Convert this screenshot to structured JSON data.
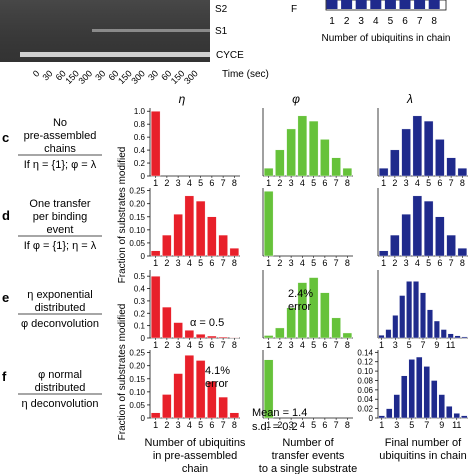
{
  "gel": {
    "labels": [
      "S2",
      "S1",
      "CYCE"
    ],
    "time_ticks": [
      "0",
      "30",
      "60",
      "150",
      "300",
      "30",
      "60",
      "150",
      "300",
      "30",
      "60",
      "150",
      "300"
    ],
    "time_label": "Time (sec)"
  },
  "top_chart": {
    "xlabel": "Number of ubiquitins in chain",
    "ticks": [
      "1",
      "2",
      "3",
      "4",
      "5",
      "6",
      "7",
      "8"
    ],
    "ylabel_fragment": "F"
  },
  "col_headers": [
    "η",
    "φ",
    "λ"
  ],
  "ylabel": "Fraction of substrates modified",
  "bottom_xlabels": [
    [
      "Number of ubiquitins",
      "in pre-assembled",
      "chain"
    ],
    [
      "Number of",
      "transfer events",
      "to a single substrate"
    ],
    [
      "Final number of",
      "ubiquitins in chain"
    ]
  ],
  "rows": [
    {
      "letter": "c",
      "desc_lines": [
        "No",
        "pre-assembled",
        "chains"
      ],
      "cond": "If η = {1}; φ = λ"
    },
    {
      "letter": "d",
      "desc_lines": [
        "One transfer",
        "per binding",
        "event"
      ],
      "cond": "If φ = {1}; η = λ"
    },
    {
      "letter": "e",
      "desc_lines": [
        "η exponential",
        "distributed"
      ],
      "cond": "φ deconvolution"
    },
    {
      "letter": "f",
      "desc_lines": [
        "φ normal",
        "distributed"
      ],
      "cond": "η deconvolution"
    }
  ],
  "annotations": {
    "alpha": "α = 0.5",
    "err_e": [
      "2.4%",
      "error"
    ],
    "err_f": [
      "4.1%",
      "error"
    ],
    "mean_sd": [
      "Mean = 1.4",
      "s.d. = 0.2"
    ]
  },
  "colors": {
    "red": "#e8202a",
    "green": "#66c23a",
    "blue": "#1f2a8c"
  },
  "chart_data": [
    {
      "panel": "c-eta",
      "type": "bar",
      "color": "red",
      "categories": [
        "1",
        "2",
        "3",
        "4",
        "5",
        "6",
        "7",
        "8"
      ],
      "values": [
        1.0,
        0,
        0,
        0,
        0,
        0,
        0,
        0
      ],
      "yticks": [
        "0",
        "0.2",
        "0.4",
        "0.6",
        "0.8",
        "1.0"
      ],
      "ylim": [
        0,
        1.05
      ]
    },
    {
      "panel": "c-phi",
      "type": "bar",
      "color": "green",
      "categories": [
        "1",
        "2",
        "3",
        "4",
        "5",
        "6",
        "7",
        "8"
      ],
      "values": [
        0.03,
        0.1,
        0.18,
        0.23,
        0.21,
        0.14,
        0.07,
        0.03
      ],
      "yticks": [],
      "ylim": [
        0,
        0.26
      ]
    },
    {
      "panel": "c-lambda",
      "type": "bar",
      "color": "blue",
      "categories": [
        "1",
        "2",
        "3",
        "4",
        "5",
        "6",
        "7",
        "8"
      ],
      "values": [
        0.03,
        0.1,
        0.18,
        0.23,
        0.21,
        0.14,
        0.07,
        0.03
      ],
      "yticks": [],
      "ylim": [
        0,
        0.26
      ]
    },
    {
      "panel": "d-eta",
      "type": "bar",
      "color": "red",
      "categories": [
        "1",
        "2",
        "3",
        "4",
        "5",
        "6",
        "7",
        "8"
      ],
      "values": [
        0.02,
        0.08,
        0.16,
        0.23,
        0.21,
        0.15,
        0.08,
        0.03
      ],
      "yticks": [
        "0",
        "0.05",
        "0.10",
        "0.15",
        "0.20",
        "0.25"
      ],
      "ylim": [
        0,
        0.26
      ]
    },
    {
      "panel": "d-phi",
      "type": "bar",
      "color": "green",
      "categories": [
        "1",
        "2",
        "3",
        "4",
        "5",
        "6",
        "7",
        "8"
      ],
      "values": [
        1.0,
        0,
        0,
        0,
        0,
        0,
        0,
        0
      ],
      "yticks": [],
      "ylim": [
        0,
        1.05
      ]
    },
    {
      "panel": "d-lambda",
      "type": "bar",
      "color": "blue",
      "categories": [
        "1",
        "2",
        "3",
        "4",
        "5",
        "6",
        "7",
        "8"
      ],
      "values": [
        0.02,
        0.08,
        0.16,
        0.23,
        0.21,
        0.15,
        0.08,
        0.03
      ],
      "yticks": [],
      "ylim": [
        0,
        0.26
      ]
    },
    {
      "panel": "e-eta",
      "type": "bar",
      "color": "red",
      "categories": [
        "1",
        "2",
        "3",
        "4",
        "5",
        "6",
        "7",
        "8"
      ],
      "values": [
        0.5,
        0.25,
        0.125,
        0.063,
        0.031,
        0.016,
        0.008,
        0.004
      ],
      "yticks": [
        "0",
        "0.1",
        "0.2",
        "0.3",
        "0.4",
        "0.5"
      ],
      "ylim": [
        0,
        0.55
      ]
    },
    {
      "panel": "e-phi",
      "type": "bar",
      "color": "green",
      "categories": [
        "1",
        "2",
        "3",
        "4",
        "5",
        "6",
        "7",
        "8"
      ],
      "values": [
        0.01,
        0.04,
        0.12,
        0.22,
        0.24,
        0.18,
        0.08,
        0.02
      ],
      "yticks": [],
      "ylim": [
        0,
        0.27
      ]
    },
    {
      "panel": "e-lambda",
      "type": "bar",
      "color": "blue",
      "categories": [
        "1",
        "2",
        "3",
        "4",
        "5",
        "6",
        "7",
        "8",
        "9",
        "10",
        "11",
        "12",
        "13"
      ],
      "values": [
        0.01,
        0.03,
        0.08,
        0.15,
        0.2,
        0.2,
        0.16,
        0.1,
        0.06,
        0.03,
        0.015,
        0.008,
        0.004
      ],
      "xticklabels": [
        "1",
        "3",
        "5",
        "7",
        "9",
        "11"
      ],
      "yticks": [],
      "ylim": [
        0,
        0.24
      ]
    },
    {
      "panel": "f-eta",
      "type": "bar",
      "color": "red",
      "categories": [
        "1",
        "2",
        "3",
        "4",
        "5",
        "6",
        "7",
        "8"
      ],
      "values": [
        0.02,
        0.09,
        0.17,
        0.24,
        0.22,
        0.14,
        0.08,
        0.02
      ],
      "yticks": [
        "0",
        "0.05",
        "0.10",
        "0.15",
        "0.20",
        "0.25"
      ],
      "ylim": [
        0,
        0.26
      ]
    },
    {
      "panel": "f-phi",
      "type": "bar",
      "color": "green",
      "categories": [
        "1",
        "2",
        "3",
        "4",
        "5",
        "6",
        "7",
        "8"
      ],
      "values": [
        0.9,
        0,
        0,
        0,
        0,
        0,
        0,
        0
      ],
      "yticks": [],
      "ylim": [
        0,
        1.05
      ]
    },
    {
      "panel": "f-lambda",
      "type": "bar",
      "color": "blue",
      "categories": [
        "1",
        "2",
        "3",
        "4",
        "5",
        "6",
        "7",
        "8",
        "9",
        "10",
        "11",
        "12"
      ],
      "values": [
        0.005,
        0.02,
        0.05,
        0.09,
        0.125,
        0.13,
        0.11,
        0.08,
        0.05,
        0.025,
        0.01,
        0.005
      ],
      "xticklabels": [
        "1",
        "3",
        "5",
        "7",
        "9",
        "11"
      ],
      "yticks": [
        "0",
        "0.02",
        "0.04",
        "0.06",
        "0.08",
        "0.10",
        "0.12",
        "0.14"
      ],
      "ylim": [
        0,
        0.145
      ]
    }
  ]
}
